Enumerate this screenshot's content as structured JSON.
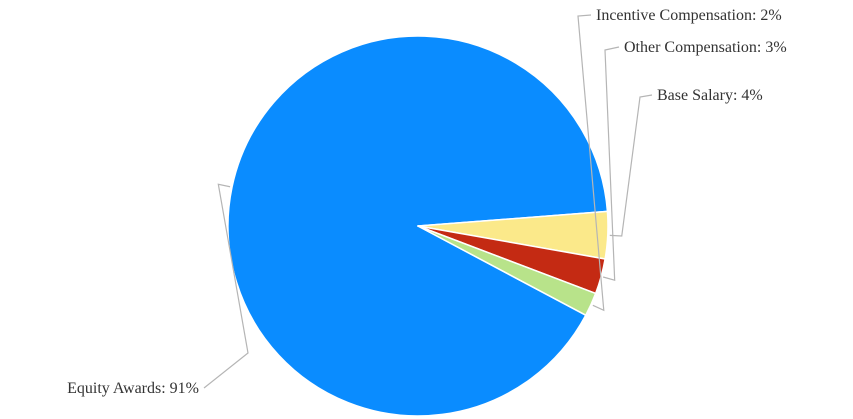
{
  "chart_data": {
    "type": "pie",
    "title": "",
    "slices": [
      {
        "label": "Equity Awards",
        "value": 91,
        "display": "Equity Awards: 91%",
        "color": "#0a8cff"
      },
      {
        "label": "Base Salary",
        "value": 4,
        "display": "Base Salary: 4%",
        "color": "#fbe98a"
      },
      {
        "label": "Other Compensation",
        "value": 3,
        "display": "Other Compensation: 3%",
        "color": "#c42a13"
      },
      {
        "label": "Incentive Compensation",
        "value": 2,
        "display": "Incentive Compensation: 2%",
        "color": "#b8e38a"
      }
    ],
    "legend": "none",
    "data_labels": "outside-with-leader-lines"
  }
}
